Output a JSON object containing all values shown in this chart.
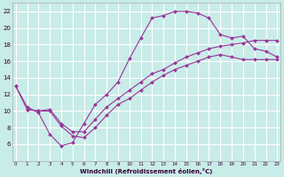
{
  "xlabel": "Windchill (Refroidissement éolien,°C)",
  "background_color": "#c8ece8",
  "grid_color": "#b0dedd",
  "line_color": "#993399",
  "curve1_x": [
    0,
    1,
    2,
    3,
    4,
    5,
    6,
    7,
    8,
    9,
    10,
    11,
    12,
    13,
    14,
    15,
    16,
    17,
    18,
    19,
    20,
    21,
    22,
    23
  ],
  "curve1_y": [
    13.0,
    10.5,
    9.8,
    7.2,
    5.8,
    6.2,
    8.5,
    10.8,
    12.0,
    13.5,
    16.3,
    18.8,
    21.2,
    21.5,
    22.0,
    22.0,
    21.8,
    21.2,
    19.2,
    18.8,
    19.0,
    17.5,
    17.2,
    16.5
  ],
  "curve2_x": [
    0,
    1,
    2,
    3,
    4,
    5,
    6,
    7,
    8,
    9,
    10,
    11,
    12,
    13,
    14,
    15,
    16,
    17,
    18,
    19,
    20,
    21,
    22,
    23
  ],
  "curve2_y": [
    13.0,
    10.2,
    10.0,
    10.2,
    8.5,
    7.5,
    7.5,
    9.0,
    10.5,
    11.5,
    12.5,
    13.5,
    14.5,
    15.0,
    15.8,
    16.5,
    17.0,
    17.5,
    17.8,
    18.0,
    18.2,
    18.5,
    18.5,
    18.5
  ],
  "curve3_x": [
    1,
    2,
    3,
    4,
    5,
    6,
    7,
    8,
    9,
    10,
    11,
    12,
    13,
    14,
    15,
    16,
    17,
    18,
    19,
    20,
    21,
    22,
    23
  ],
  "curve3_y": [
    10.2,
    10.0,
    10.0,
    8.2,
    7.0,
    6.8,
    8.0,
    9.5,
    10.8,
    11.5,
    12.5,
    13.5,
    14.3,
    15.0,
    15.5,
    16.0,
    16.5,
    16.8,
    16.5,
    16.2,
    16.2,
    16.2,
    16.2
  ],
  "ylim": [
    4,
    23
  ],
  "xlim": [
    -0.3,
    23.3
  ],
  "yticks": [
    6,
    8,
    10,
    12,
    14,
    16,
    18,
    20,
    22
  ],
  "xticks": [
    0,
    1,
    2,
    3,
    4,
    5,
    6,
    7,
    8,
    9,
    10,
    11,
    12,
    13,
    14,
    15,
    16,
    17,
    18,
    19,
    20,
    21,
    22,
    23
  ]
}
